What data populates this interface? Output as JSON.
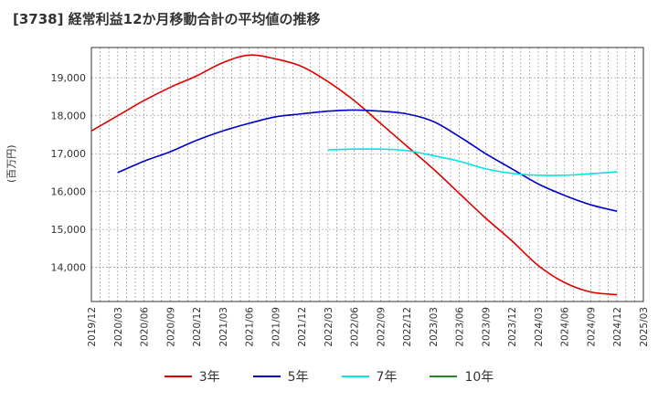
{
  "chart_data": {
    "type": "line",
    "title": "[3738]  経常利益12か月移動合計の平均値の推移",
    "ylabel": "(百万円)",
    "xlabel": "",
    "ylim": [
      13100,
      19800
    ],
    "yticks": [
      14000,
      15000,
      16000,
      17000,
      18000,
      19000
    ],
    "ytick_labels": [
      "14,000",
      "15,000",
      "16,000",
      "17,000",
      "18,000",
      "19,000"
    ],
    "xtick_labels": [
      "2019/12",
      "2020/03",
      "2020/06",
      "2020/09",
      "2020/12",
      "2021/03",
      "2021/06",
      "2021/09",
      "2021/12",
      "2022/03",
      "2022/06",
      "2022/09",
      "2022/12",
      "2023/03",
      "2023/06",
      "2023/09",
      "2023/12",
      "2024/03",
      "2024/06",
      "2024/09",
      "2024/12",
      "2025/03"
    ],
    "grid": true,
    "legend_position": "bottom",
    "series": [
      {
        "name": "3年",
        "color": "#e00000",
        "x": [
          "2019/12",
          "2020/03",
          "2020/06",
          "2020/09",
          "2020/12",
          "2021/03",
          "2021/06",
          "2021/09",
          "2021/12",
          "2022/03",
          "2022/06",
          "2022/09",
          "2022/12",
          "2023/03",
          "2023/06",
          "2023/09",
          "2023/12",
          "2024/03",
          "2024/06",
          "2024/09",
          "2024/12"
        ],
        "values": [
          17600,
          18000,
          18400,
          18750,
          19050,
          19400,
          19600,
          19500,
          19300,
          18900,
          18400,
          17800,
          17200,
          16600,
          15950,
          15300,
          14700,
          14050,
          13600,
          13350,
          13280
        ]
      },
      {
        "name": "5年",
        "color": "#0000cc",
        "x": [
          "2020/03",
          "2020/06",
          "2020/09",
          "2020/12",
          "2021/03",
          "2021/06",
          "2021/09",
          "2021/12",
          "2022/03",
          "2022/06",
          "2022/09",
          "2022/12",
          "2023/03",
          "2023/06",
          "2023/09",
          "2023/12",
          "2024/03",
          "2024/06",
          "2024/09",
          "2024/12"
        ],
        "values": [
          16500,
          16800,
          17050,
          17350,
          17600,
          17800,
          17970,
          18050,
          18120,
          18150,
          18120,
          18050,
          17850,
          17450,
          17000,
          16600,
          16200,
          15900,
          15650,
          15480
        ]
      },
      {
        "name": "7年",
        "color": "#00e5e5",
        "x": [
          "2022/03",
          "2022/06",
          "2022/09",
          "2022/12",
          "2023/03",
          "2023/06",
          "2023/09",
          "2023/12",
          "2024/03",
          "2024/06",
          "2024/09",
          "2024/12"
        ],
        "values": [
          17100,
          17120,
          17120,
          17080,
          16950,
          16800,
          16600,
          16480,
          16430,
          16430,
          16470,
          16520
        ]
      },
      {
        "name": "10年",
        "color": "#228b22",
        "x": [],
        "values": []
      }
    ]
  }
}
